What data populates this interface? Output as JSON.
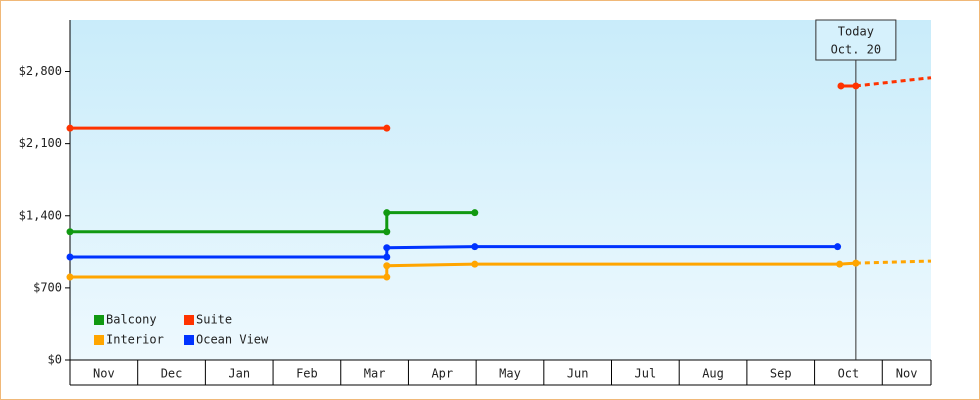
{
  "chart_data": {
    "type": "line",
    "step": true,
    "categories": [
      "Nov",
      "Dec",
      "Jan",
      "Feb",
      "Mar",
      "Apr",
      "May",
      "Jun",
      "Jul",
      "Aug",
      "Sep",
      "Oct",
      "Nov"
    ],
    "xlim": [
      0,
      12.72
    ],
    "ylim": [
      0,
      3300
    ],
    "yticks": [
      {
        "value": 0,
        "label": "$0"
      },
      {
        "value": 700,
        "label": "$700"
      },
      {
        "value": 1400,
        "label": "$1,400"
      },
      {
        "value": 2100,
        "label": "$2,100"
      },
      {
        "value": 2800,
        "label": "$2,800"
      }
    ],
    "series": [
      {
        "name": "Balcony",
        "color": "#119911",
        "x": [
          0,
          4.68,
          4.68,
          5.98
        ],
        "values": [
          1245,
          1245,
          1430,
          1430
        ]
      },
      {
        "name": "Suite",
        "color": "#ff3300",
        "x": [
          0,
          4.68,
          11.39,
          11.61
        ],
        "values": [
          2250,
          2250,
          2660,
          2660
        ],
        "gap_after": 1,
        "forecast": {
          "x": [
            11.61,
            12.72
          ],
          "values": [
            2660,
            2740
          ]
        }
      },
      {
        "name": "Interior",
        "color": "#ffa500",
        "x": [
          0,
          4.68,
          4.68,
          5.98,
          11.37,
          11.61
        ],
        "values": [
          805,
          805,
          915,
          930,
          930,
          940
        ],
        "forecast": {
          "x": [
            11.61,
            12.72
          ],
          "values": [
            940,
            960
          ]
        }
      },
      {
        "name": "Ocean View",
        "color": "#0033ff",
        "x": [
          0,
          4.68,
          4.68,
          5.98,
          11.34
        ],
        "values": [
          1000,
          1000,
          1090,
          1100,
          1100
        ]
      }
    ],
    "today": {
      "x": 11.61,
      "lines": [
        "Today",
        "Oct. 20"
      ]
    }
  }
}
